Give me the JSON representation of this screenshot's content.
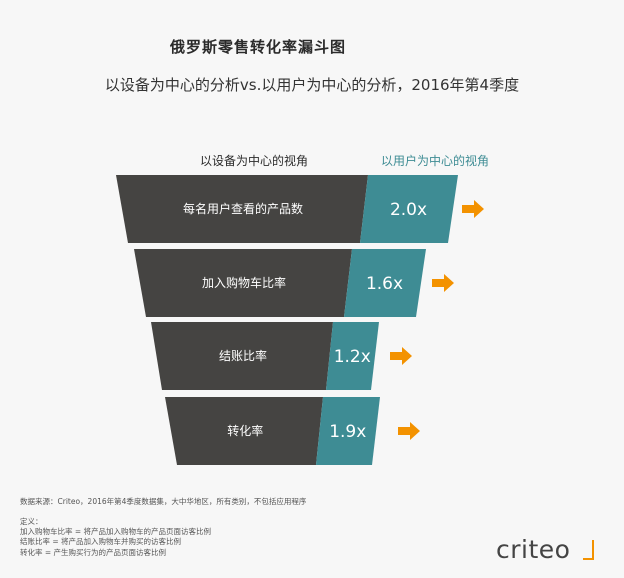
{
  "title": "俄罗斯零售转化率漏斗图",
  "subtitle": "以设备为中心的分析vs.以用户为中心的分析，2016年第4季度",
  "colors": {
    "dark": "#454442",
    "teal": "#3e8c94",
    "arrow": "#f39200"
  },
  "chart_data": {
    "type": "funnel",
    "left_header": "以设备为中心的视角",
    "right_header": "以用户为中心的视角",
    "stages": [
      {
        "label": "每名用户查看的产品数",
        "value": 2.0,
        "value_text": "2.0x"
      },
      {
        "label": "加入购物车比率",
        "value": 1.6,
        "value_text": "1.6x"
      },
      {
        "label": "结账比率",
        "value": 1.2,
        "value_text": "1.2x"
      },
      {
        "label": "转化率",
        "value": 1.9,
        "value_text": "1.9x"
      }
    ]
  },
  "footer": {
    "source": "数据来源：Criteo，2016年第4季度数据集，大中华地区，所有类别，不包括应用程序",
    "definition_title": "定义：",
    "definitions": [
      "加入购物车比率 = 将产品加入购物车的产品页面访客比例",
      "结账比率 = 将产品加入购物车并购买的访客比例",
      "转化率 = 产生购买行为的产品页面访客比例"
    ]
  },
  "logo": {
    "text": "criteo"
  }
}
